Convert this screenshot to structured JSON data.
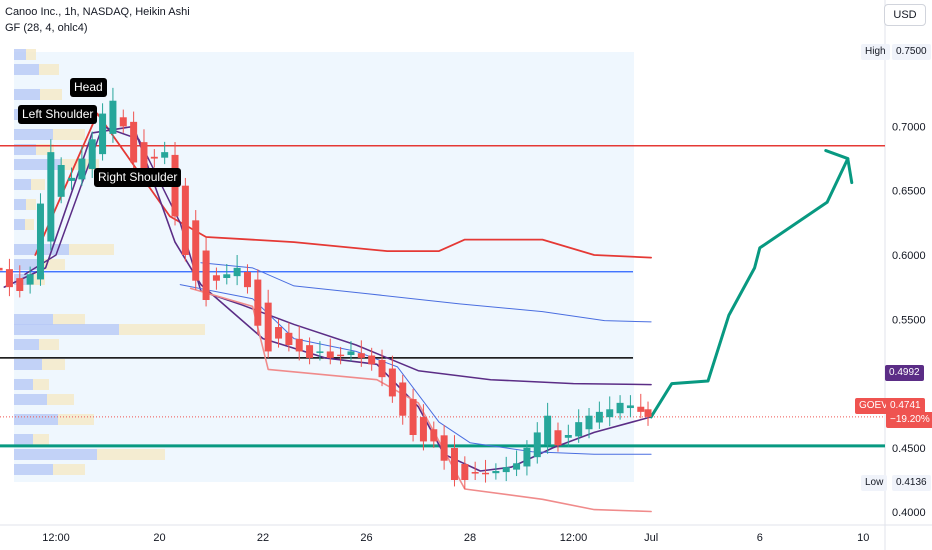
{
  "header": {
    "title": "Canoo Inc., 1h, NASDAQ, Heikin Ashi",
    "indicator": "GF (28, 4, ohlc4)"
  },
  "currency_button": "USD",
  "annotations": {
    "head": "Head",
    "left_shoulder": "Left Shoulder",
    "right_shoulder": "Right Shoulder"
  },
  "badges": {
    "high_label": "High",
    "high_value": "0.7500",
    "low_label": "Low",
    "low_value": "0.4136",
    "band_value": "0.4992",
    "symbol": "GOEV",
    "last_price": "0.4741",
    "change": "−19.20%"
  },
  "colors": {
    "up": "#26a69a",
    "down": "#ef5350",
    "projection": "#089981",
    "upper_band": "#e53935",
    "lower_band": "#f08b8b",
    "mid_band": "#5b2d86",
    "thin_band": "#4a6ee0",
    "support": "#089981"
  },
  "chart_data": {
    "type": "candlestick",
    "title": "Canoo Inc., 1h, NASDAQ, Heikin Ashi",
    "y_range": [
      0.39,
      0.775
    ],
    "x_range_days": [
      -1.5,
      11.7
    ],
    "x_ticks": [
      {
        "d": 0,
        "label": "12:00"
      },
      {
        "d": 1,
        "label": "20"
      },
      {
        "d": 2,
        "label": "22"
      },
      {
        "d": 3,
        "label": "26"
      },
      {
        "d": 4,
        "label": "28"
      },
      {
        "d": 5,
        "label": "12:00"
      },
      {
        "d": 5.75,
        "label": "Jul"
      },
      {
        "d": 6.8,
        "label": "6"
      },
      {
        "d": 7.8,
        "label": "10"
      }
    ],
    "y_ticks": [
      0.4,
      0.45,
      0.55,
      0.6,
      0.65,
      0.7
    ],
    "heikin_ashi_close": [
      [
        -0.55,
        0.588
      ],
      [
        -0.45,
        0.575
      ],
      [
        -0.35,
        0.572
      ],
      [
        -0.25,
        0.585
      ],
      [
        -0.15,
        0.64
      ],
      [
        -0.05,
        0.68
      ],
      [
        0.05,
        0.67
      ],
      [
        0.15,
        0.66
      ],
      [
        0.25,
        0.675
      ],
      [
        0.35,
        0.69
      ],
      [
        0.45,
        0.71
      ],
      [
        0.55,
        0.72
      ],
      [
        0.65,
        0.7
      ],
      [
        0.75,
        0.672
      ],
      [
        0.85,
        0.665
      ],
      [
        0.95,
        0.675
      ],
      [
        1.05,
        0.68
      ],
      [
        1.15,
        0.63
      ],
      [
        1.25,
        0.6
      ],
      [
        1.35,
        0.58
      ],
      [
        1.45,
        0.565
      ],
      [
        1.55,
        0.58
      ],
      [
        1.65,
        0.585
      ],
      [
        1.75,
        0.59
      ],
      [
        1.85,
        0.575
      ],
      [
        1.95,
        0.545
      ],
      [
        2.05,
        0.525
      ],
      [
        2.15,
        0.535
      ],
      [
        2.25,
        0.53
      ],
      [
        2.35,
        0.525
      ],
      [
        2.45,
        0.52
      ],
      [
        2.55,
        0.525
      ],
      [
        2.65,
        0.52
      ],
      [
        2.75,
        0.522
      ],
      [
        2.85,
        0.525
      ],
      [
        2.95,
        0.52
      ],
      [
        3.05,
        0.515
      ],
      [
        3.15,
        0.505
      ],
      [
        3.25,
        0.49
      ],
      [
        3.35,
        0.475
      ],
      [
        3.45,
        0.46
      ],
      [
        3.55,
        0.455
      ],
      [
        3.65,
        0.455
      ],
      [
        3.75,
        0.44
      ],
      [
        3.85,
        0.425
      ],
      [
        3.95,
        0.425
      ],
      [
        4.05,
        0.43
      ],
      [
        4.15,
        0.43
      ],
      [
        4.25,
        0.432
      ],
      [
        4.35,
        0.435
      ],
      [
        4.45,
        0.438
      ],
      [
        4.55,
        0.45
      ],
      [
        4.65,
        0.462
      ],
      [
        4.75,
        0.475
      ],
      [
        4.85,
        0.452
      ],
      [
        4.95,
        0.46
      ],
      [
        5.05,
        0.47
      ],
      [
        5.15,
        0.475
      ],
      [
        5.25,
        0.478
      ],
      [
        5.35,
        0.48
      ],
      [
        5.45,
        0.485
      ],
      [
        5.55,
        0.483
      ],
      [
        5.65,
        0.478
      ],
      [
        5.72,
        0.4741
      ]
    ],
    "series": [
      {
        "name": "",
        "role": "upper band",
        "points": [
          [
            -0.2,
            0.6
          ],
          [
            0.4,
            0.71
          ],
          [
            1.1,
            0.63
          ],
          [
            1.45,
            0.614
          ],
          [
            2.3,
            0.61
          ],
          [
            3.2,
            0.603
          ],
          [
            3.7,
            0.603
          ],
          [
            3.95,
            0.612
          ],
          [
            4.7,
            0.612
          ],
          [
            5.2,
            0.6
          ],
          [
            5.75,
            0.598
          ]
        ]
      },
      {
        "name": "",
        "role": "upper inner band",
        "points": [
          [
            1.4,
            0.594
          ],
          [
            1.9,
            0.59
          ],
          [
            2.3,
            0.576
          ],
          [
            3.0,
            0.57
          ],
          [
            3.9,
            0.562
          ],
          [
            4.7,
            0.556
          ],
          [
            5.3,
            0.549
          ],
          [
            5.75,
            0.548
          ]
        ]
      },
      {
        "name": "",
        "role": "mid band",
        "points": [
          [
            -0.3,
            0.585
          ],
          [
            0.0,
            0.6
          ],
          [
            0.45,
            0.7
          ],
          [
            0.8,
            0.69
          ],
          [
            1.2,
            0.625
          ],
          [
            1.4,
            0.572
          ],
          [
            1.8,
            0.561
          ],
          [
            2.3,
            0.546
          ],
          [
            2.9,
            0.53
          ],
          [
            3.5,
            0.51
          ],
          [
            4.2,
            0.503
          ],
          [
            5.0,
            0.5
          ],
          [
            5.75,
            0.4992
          ]
        ]
      },
      {
        "name": "",
        "role": "fast average",
        "points": [
          [
            -0.5,
            0.575
          ],
          [
            -0.1,
            0.59
          ],
          [
            0.35,
            0.695
          ],
          [
            0.75,
            0.7
          ],
          [
            1.15,
            0.61
          ],
          [
            1.4,
            0.577
          ],
          [
            2.0,
            0.535
          ],
          [
            2.6,
            0.52
          ],
          [
            3.1,
            0.515
          ],
          [
            3.5,
            0.482
          ],
          [
            3.75,
            0.445
          ],
          [
            4.1,
            0.432
          ],
          [
            4.4,
            0.435
          ],
          [
            4.8,
            0.45
          ],
          [
            5.2,
            0.462
          ],
          [
            5.75,
            0.4741
          ]
        ]
      },
      {
        "name": "",
        "role": "thin band",
        "points": [
          [
            1.2,
            0.577
          ],
          [
            1.9,
            0.566
          ],
          [
            2.3,
            0.535
          ],
          [
            2.9,
            0.525
          ],
          [
            3.3,
            0.513
          ],
          [
            3.7,
            0.47
          ],
          [
            4.0,
            0.454
          ],
          [
            4.6,
            0.447
          ],
          [
            5.2,
            0.445
          ],
          [
            5.75,
            0.445
          ]
        ]
      },
      {
        "name": "",
        "role": "lower band",
        "points": [
          [
            1.3,
            0.574
          ],
          [
            1.9,
            0.56
          ],
          [
            2.05,
            0.511
          ],
          [
            3.1,
            0.503
          ],
          [
            3.5,
            0.485
          ],
          [
            3.95,
            0.418
          ],
          [
            4.7,
            0.41
          ],
          [
            5.2,
            0.402
          ],
          [
            5.75,
            0.4005
          ]
        ]
      },
      {
        "name": "",
        "role": "projection",
        "points": [
          [
            5.75,
            0.4741
          ],
          [
            5.95,
            0.5
          ],
          [
            6.3,
            0.502
          ],
          [
            6.5,
            0.553
          ],
          [
            6.75,
            0.59
          ],
          [
            6.8,
            0.6055
          ],
          [
            7.45,
            0.641
          ],
          [
            7.65,
            0.675
          ]
        ]
      }
    ],
    "horizontal_lines": [
      {
        "name": "resistance",
        "y": 0.685,
        "color": "#e53935",
        "width": 1.5
      },
      {
        "name": "neckline",
        "y": 0.587,
        "color": "#2962ff",
        "width": 1.2
      },
      {
        "name": "support level",
        "y": 0.52,
        "color": "#000000",
        "width": 1.5
      },
      {
        "name": "major support",
        "y": 0.4515,
        "color": "#089981",
        "width": 3
      }
    ]
  }
}
